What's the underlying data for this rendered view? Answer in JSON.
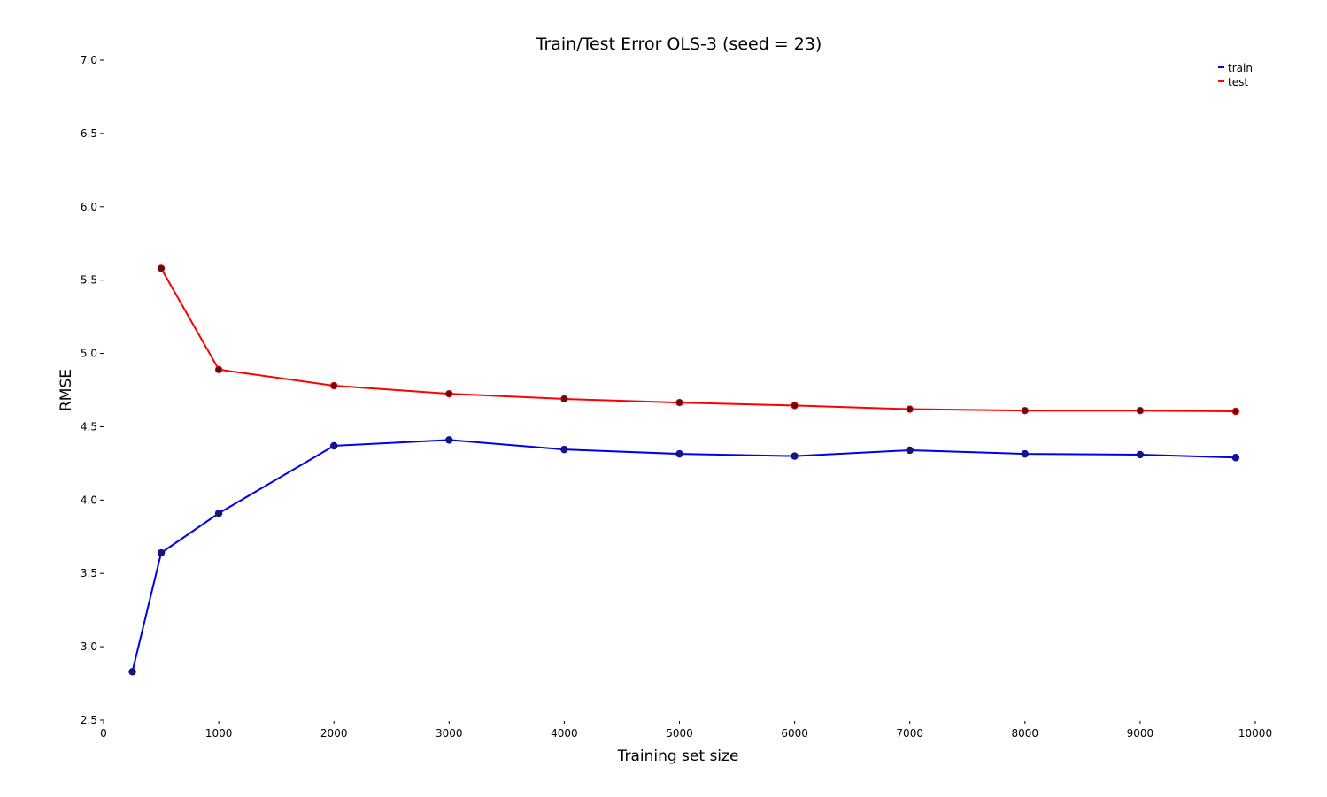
{
  "chart_data": {
    "type": "line",
    "title": "Train/Test Error OLS-3 (seed = 23)",
    "xlabel": "Training set size",
    "ylabel": "RMSE",
    "xlim": [
      0,
      10000
    ],
    "ylim": [
      2.5,
      7.0
    ],
    "x_ticks": [
      0,
      1000,
      2000,
      3000,
      4000,
      5000,
      6000,
      7000,
      8000,
      9000,
      10000
    ],
    "y_ticks": [
      "2.5",
      "3.0",
      "3.5",
      "4.0",
      "4.5",
      "5.0",
      "5.5",
      "6.0",
      "6.5",
      "7.0"
    ],
    "grid": false,
    "legend_position": "top-right",
    "series": [
      {
        "name": "train",
        "color": "#0000ee",
        "marker_color": "#1a1a5e",
        "x": [
          250,
          500,
          1000,
          2000,
          3000,
          4000,
          5000,
          6000,
          7000,
          8000,
          9000,
          9830
        ],
        "y": [
          2.83,
          3.64,
          3.91,
          4.37,
          4.41,
          4.345,
          4.315,
          4.3,
          4.34,
          4.315,
          4.31,
          4.29
        ]
      },
      {
        "name": "test",
        "color": "#ff0000",
        "marker_color": "#5a1010",
        "x": [
          500,
          1000,
          2000,
          3000,
          4000,
          5000,
          6000,
          7000,
          8000,
          9000,
          9830
        ],
        "y": [
          5.58,
          4.89,
          4.78,
          4.725,
          4.69,
          4.665,
          4.645,
          4.62,
          4.61,
          4.61,
          4.605
        ]
      }
    ]
  }
}
